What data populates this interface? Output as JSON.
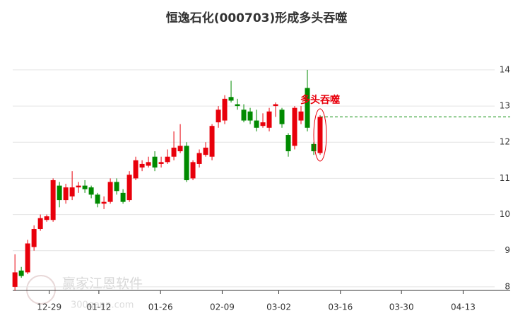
{
  "chart_data": {
    "type": "candlestick",
    "title": "恒逸石化(000703)形成多头吞噬",
    "annotation": "多头吞噬",
    "watermark": [
      "赢家江恩软件",
      "300gann.com"
    ],
    "up_color": "#e8000b",
    "down_color": "#008a00",
    "x": [
      0,
      1,
      2,
      3,
      4,
      5,
      6,
      7,
      8,
      9,
      10,
      11,
      12,
      13,
      14,
      15,
      16,
      17,
      18,
      19,
      20,
      21,
      22,
      23,
      24,
      25,
      26,
      27,
      28,
      29,
      30,
      31,
      32,
      33,
      34,
      35,
      36,
      37,
      38,
      39,
      40,
      41,
      42,
      43,
      44,
      45,
      46,
      47,
      48
    ],
    "open": [
      8.0,
      8.45,
      8.4,
      9.1,
      9.6,
      9.85,
      9.85,
      10.8,
      10.4,
      10.5,
      10.75,
      10.8,
      10.75,
      10.55,
      10.3,
      10.35,
      10.9,
      10.6,
      10.4,
      11.0,
      11.3,
      11.35,
      11.6,
      11.4,
      11.45,
      11.6,
      11.75,
      11.9,
      11.0,
      11.4,
      11.65,
      11.6,
      12.55,
      12.6,
      13.25,
      13.05,
      12.9,
      12.85,
      12.6,
      12.45,
      12.4,
      13.0,
      12.9,
      12.2,
      11.9,
      12.6,
      13.5,
      11.95,
      11.7
    ],
    "high": [
      8.9,
      8.55,
      9.3,
      9.7,
      10.0,
      10.0,
      11.0,
      10.9,
      10.85,
      11.2,
      10.9,
      10.95,
      10.8,
      10.6,
      10.5,
      11.0,
      11.0,
      10.7,
      11.2,
      11.6,
      11.5,
      11.6,
      11.75,
      11.6,
      11.8,
      12.3,
      12.5,
      12.0,
      11.5,
      11.8,
      12.0,
      12.5,
      13.0,
      13.3,
      13.7,
      13.2,
      13.05,
      12.95,
      12.9,
      12.8,
      12.95,
      13.1,
      12.95,
      12.25,
      13.0,
      13.0,
      14.0,
      12.0,
      12.75
    ],
    "low": [
      7.9,
      8.25,
      8.35,
      9.0,
      9.55,
      9.8,
      9.8,
      10.2,
      10.3,
      10.4,
      10.6,
      10.6,
      10.45,
      10.2,
      10.15,
      10.3,
      10.55,
      10.3,
      10.35,
      10.95,
      11.2,
      11.3,
      11.2,
      11.3,
      11.4,
      11.5,
      11.7,
      10.9,
      10.95,
      11.3,
      11.6,
      11.5,
      12.4,
      12.5,
      13.1,
      12.9,
      12.55,
      12.5,
      12.3,
      12.4,
      12.3,
      12.7,
      12.4,
      11.6,
      11.8,
      12.5,
      12.3,
      11.65,
      11.65
    ],
    "close": [
      8.4,
      8.3,
      9.2,
      9.6,
      9.9,
      9.95,
      10.95,
      10.4,
      10.75,
      10.75,
      10.8,
      10.7,
      10.55,
      10.3,
      10.35,
      10.9,
      10.65,
      10.35,
      11.1,
      11.5,
      11.4,
      11.45,
      11.3,
      11.45,
      11.6,
      11.85,
      11.9,
      10.95,
      11.45,
      11.7,
      11.85,
      12.45,
      12.9,
      13.2,
      13.15,
      13.0,
      12.6,
      12.6,
      12.4,
      12.55,
      12.85,
      13.05,
      12.5,
      11.75,
      12.95,
      12.85,
      12.4,
      11.75,
      12.7
    ],
    "xlim": [
      -0.35,
      77.9
    ],
    "xticks": [
      {
        "value": 5.4,
        "label": "12-29"
      },
      {
        "value": 13.2,
        "label": "01-12"
      },
      {
        "value": 22.9,
        "label": "01-26"
      },
      {
        "value": 32.6,
        "label": "02-09"
      },
      {
        "value": 41.5,
        "label": "03-02"
      },
      {
        "value": 51.2,
        "label": "03-16"
      },
      {
        "value": 60.8,
        "label": "03-30"
      },
      {
        "value": 70.5,
        "label": "04-13"
      }
    ],
    "ylim": [
      7.9,
      14.8
    ],
    "yticks": [
      8,
      9,
      10,
      11,
      12,
      13,
      14
    ],
    "grid": true
  }
}
